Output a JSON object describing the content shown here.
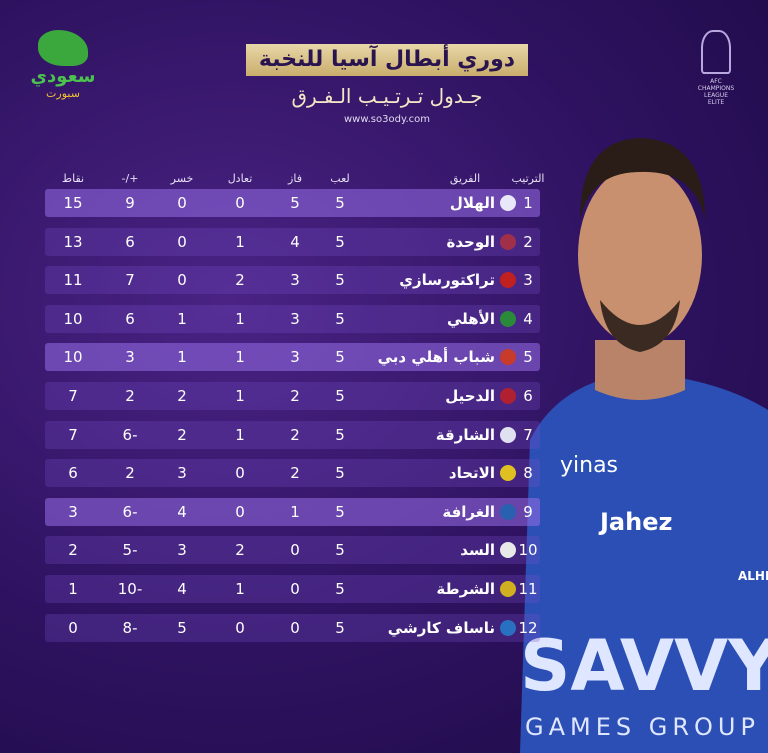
{
  "header": {
    "title": "دوري أبطال آسيا للنخبة",
    "subtitle": "جـدول تـرتـيـب الـفـرق",
    "website": "www.so3ody.com",
    "logo_top": "سعودي",
    "logo_bottom": "سبورت",
    "afc_lines": [
      "AFC",
      "CHAMPIONS",
      "LEAGUE",
      "ELITE"
    ]
  },
  "table": {
    "columns": [
      "الترتيب",
      "الفريق",
      "لعب",
      "فاز",
      "تعادل",
      "خسر",
      "+/-",
      "نقاط"
    ],
    "rows": [
      [
        1,
        "الهلال",
        5,
        5,
        0,
        0,
        9,
        15
      ],
      [
        2,
        "الوحدة",
        5,
        4,
        1,
        0,
        6,
        13
      ],
      [
        3,
        "تراكتورسازي",
        5,
        3,
        2,
        0,
        7,
        11
      ],
      [
        4,
        "الأهلي",
        5,
        3,
        1,
        1,
        6,
        10
      ],
      [
        5,
        "شباب أهلي دبي",
        5,
        3,
        1,
        1,
        3,
        10
      ],
      [
        6,
        "الدحيل",
        5,
        2,
        1,
        2,
        2,
        7
      ],
      [
        7,
        "الشارقة",
        5,
        2,
        1,
        2,
        -6,
        7
      ],
      [
        8,
        "الاتحاد",
        5,
        2,
        0,
        3,
        2,
        6
      ],
      [
        9,
        "الغرافة",
        5,
        1,
        0,
        4,
        -6,
        3
      ],
      [
        10,
        "السد",
        5,
        0,
        2,
        3,
        -5,
        2
      ],
      [
        11,
        "الشرطة",
        5,
        0,
        1,
        4,
        -10,
        1
      ],
      [
        12,
        "ناساف كارشي",
        5,
        0,
        0,
        5,
        -8,
        0
      ]
    ]
  },
  "player": {
    "sponsor": "yinas",
    "shirt": "Jahez",
    "club": "ALHILAL",
    "main": "SAVVY",
    "sub": "GAMES GROUP"
  }
}
